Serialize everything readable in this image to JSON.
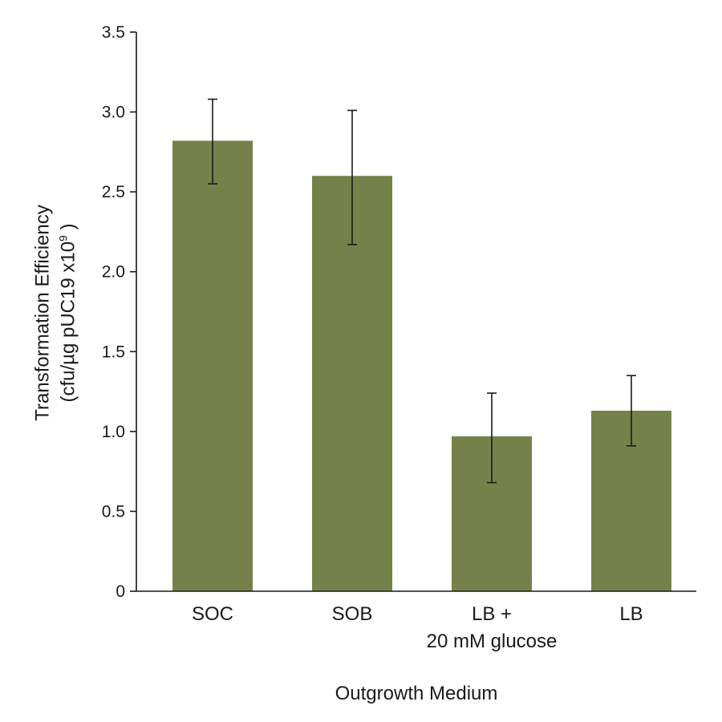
{
  "chart_data": {
    "type": "bar",
    "categories": [
      [
        "SOC"
      ],
      [
        "SOB"
      ],
      [
        "LB +",
        "20 mM glucose"
      ],
      [
        "LB"
      ]
    ],
    "values": [
      2.82,
      2.6,
      0.97,
      1.13
    ],
    "error_upper": [
      3.08,
      3.01,
      1.24,
      1.35
    ],
    "error_lower": [
      2.55,
      2.17,
      0.68,
      0.91
    ],
    "xlabel": "Outgrowth Medium",
    "ylabel_line1": "Transformation Efficiency",
    "ylabel_line2_main": "(cfu/µg pUC19 x10",
    "ylabel_line2_sup": "9",
    "ylabel_line2_end": " )",
    "ylim": [
      0,
      3.5
    ],
    "yticks": [
      0,
      0.5,
      1.0,
      1.5,
      2.0,
      2.5,
      3.0,
      3.5
    ],
    "ytick_labels": [
      "0",
      "0.5",
      "1.0",
      "1.5",
      "2.0",
      "2.5",
      "3.0",
      "3.5"
    ],
    "bar_color": "#74824a",
    "grid": false,
    "legend": "none"
  }
}
